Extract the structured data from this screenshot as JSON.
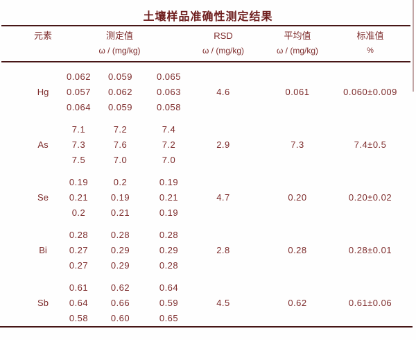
{
  "title": "土壤样品准确性测定结果",
  "colors": {
    "ink": "#7d2b2b",
    "title_ink": "#6e1d1d",
    "rule": "#461616",
    "background": "#fefefe"
  },
  "table": {
    "headers": {
      "element": "元素",
      "measured": "测定值",
      "measured_unit": "ω / (mg/kg)",
      "rsd": "RSD",
      "rsd_unit": "ω / (mg/kg)",
      "average": "平均值",
      "average_unit": "ω / (mg/kg)",
      "standard": "标准值",
      "standard_unit": "%"
    },
    "rows": [
      {
        "element": "Hg",
        "measurements": [
          [
            "0.062",
            "0.059",
            "0.065"
          ],
          [
            "0.057",
            "0.062",
            "0.063"
          ],
          [
            "0.064",
            "0.059",
            "0.058"
          ]
        ],
        "rsd": "4.6",
        "average": "0.061",
        "standard": "0.060±0.009"
      },
      {
        "element": "As",
        "measurements": [
          [
            "7.1",
            "7.2",
            "7.4"
          ],
          [
            "7.3",
            "7.6",
            "7.2"
          ],
          [
            "7.5",
            "7.0",
            "7.0"
          ]
        ],
        "rsd": "2.9",
        "average": "7.3",
        "standard": "7.4±0.5"
      },
      {
        "element": "Se",
        "measurements": [
          [
            "0.19",
            "0.2",
            "0.19"
          ],
          [
            "0.21",
            "0.19",
            "0.21"
          ],
          [
            "0.2",
            "0.21",
            "0.19"
          ]
        ],
        "rsd": "4.7",
        "average": "0.20",
        "standard": "0.20±0.02"
      },
      {
        "element": "Bi",
        "measurements": [
          [
            "0.28",
            "0.28",
            "0.28"
          ],
          [
            "0.27",
            "0.29",
            "0.29"
          ],
          [
            "0.27",
            "0.29",
            "0.28"
          ]
        ],
        "rsd": "2.8",
        "average": "0.28",
        "standard": "0.28±0.01"
      },
      {
        "element": "Sb",
        "measurements": [
          [
            "0.61",
            "0.62",
            "0.64"
          ],
          [
            "0.64",
            "0.66",
            "0.59"
          ],
          [
            "0.58",
            "0.60",
            "0.65"
          ]
        ],
        "rsd": "4.5",
        "average": "0.62",
        "standard": "0.61±0.06"
      }
    ]
  },
  "chart_data": {
    "type": "table",
    "title": "土壤样品准确性测定结果",
    "columns": [
      "元素",
      "测定值 ω/(mg/kg)",
      "RSD ω/(mg/kg)",
      "平均值 ω/(mg/kg)",
      "标准值 %"
    ],
    "rows": [
      [
        "Hg",
        "0.062 0.059 0.065 / 0.057 0.062 0.063 / 0.064 0.059 0.058",
        "4.6",
        "0.061",
        "0.060±0.009"
      ],
      [
        "As",
        "7.1 7.2 7.4 / 7.3 7.6 7.2 / 7.5 7.0 7.0",
        "2.9",
        "7.3",
        "7.4±0.5"
      ],
      [
        "Se",
        "0.19 0.2 0.19 / 0.21 0.19 0.21 / 0.2 0.21 0.19",
        "4.7",
        "0.20",
        "0.20±0.02"
      ],
      [
        "Bi",
        "0.28 0.28 0.28 / 0.27 0.29 0.29 / 0.27 0.29 0.28",
        "2.8",
        "0.28",
        "0.28±0.01"
      ],
      [
        "Sb",
        "0.61 0.62 0.64 / 0.64 0.66 0.59 / 0.58 0.60 0.65",
        "4.5",
        "0.62",
        "0.61±0.06"
      ]
    ]
  }
}
